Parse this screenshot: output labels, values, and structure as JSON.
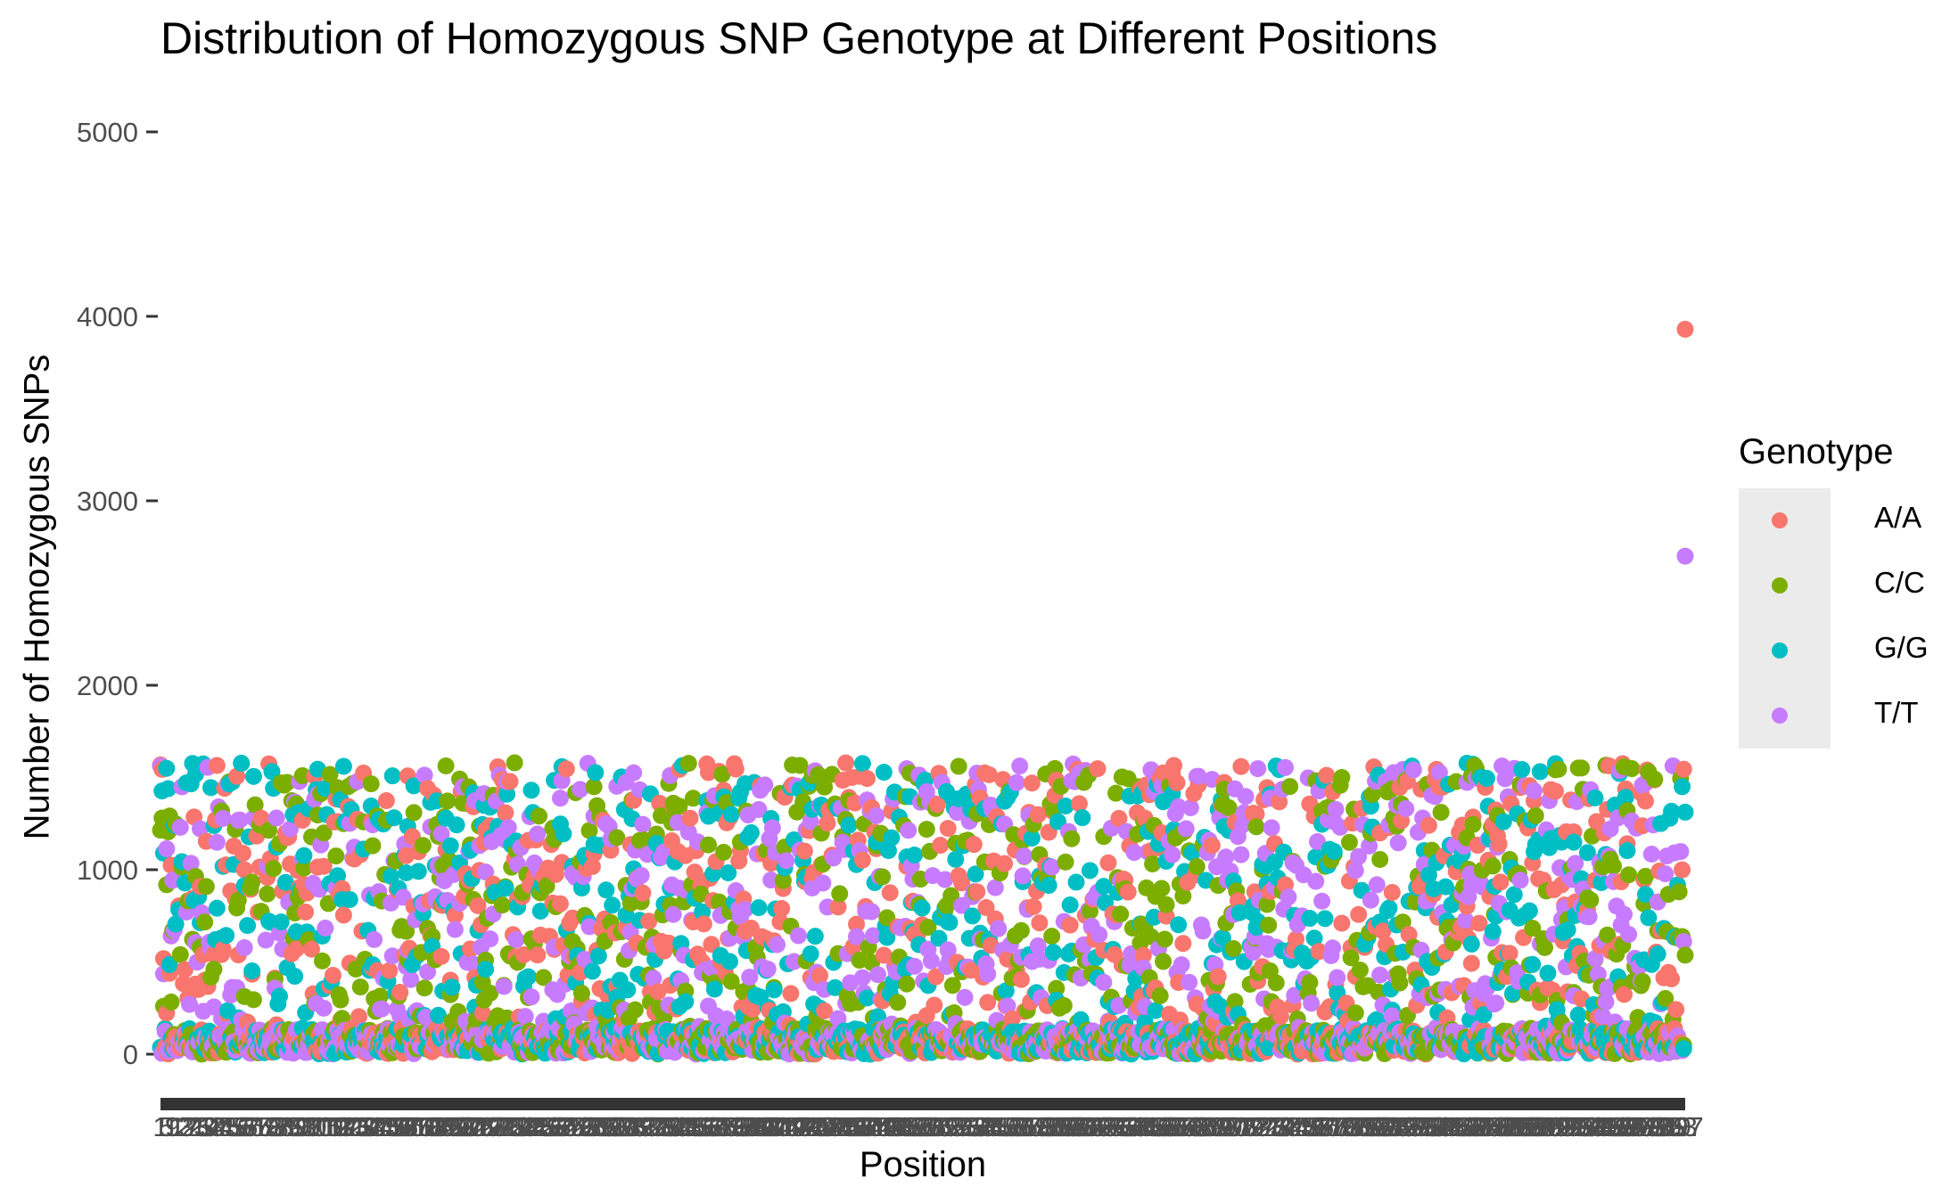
{
  "chart_data": {
    "type": "scatter",
    "title": "Distribution of Homozygous SNP Genotype at Different Positions",
    "xlabel": "Position",
    "ylabel": "Number of Homozygous SNPs",
    "ylim": [
      0,
      5000
    ],
    "y_ticks": [
      0,
      1000,
      2000,
      3000,
      4000,
      5000
    ],
    "x_axis": "categorical, ~1000 overlapping position labels rendered as an unreadable dark band",
    "grid": false,
    "background": "#ffffff",
    "legend": {
      "title": "Genotype",
      "placement": "right",
      "entries": [
        "A/A",
        "C/C",
        "G/G",
        "T/T"
      ]
    },
    "series": [
      {
        "name": "A/A",
        "color": "#F8766D"
      },
      {
        "name": "C/C",
        "color": "#7CAE00"
      },
      {
        "name": "G/G",
        "color": "#00BFC4"
      },
      {
        "name": "T/T",
        "color": "#C77CFF"
      }
    ],
    "bulk_distribution": {
      "positions_count": 1000,
      "value_range": [
        0,
        1580
      ],
      "dense_near_zero": true,
      "note": "points spread roughly uniformly between 0 and ~1580 for all genotypes, with a dense band near 0"
    },
    "highlighted_points": [
      {
        "series": "A/A",
        "x_index": 999,
        "y": 3930
      },
      {
        "series": "T/T",
        "x_index": 999,
        "y": 2700
      }
    ]
  }
}
